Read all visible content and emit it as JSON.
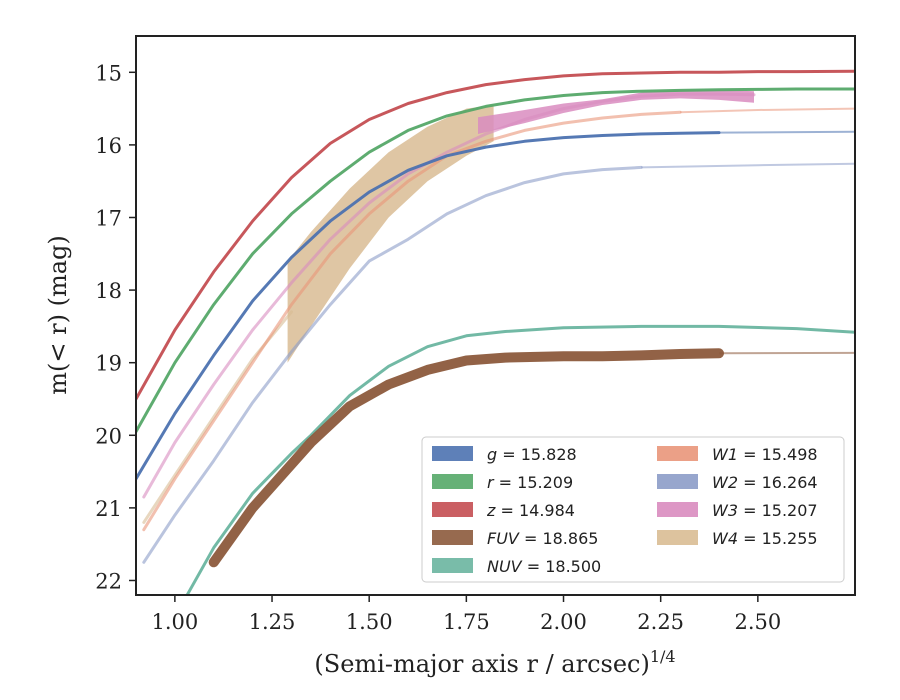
{
  "chart_data": {
    "type": "line",
    "title": "",
    "xlabel": "(Semi-major axis r / arcsec)",
    "xlabel_sup": "1/4",
    "ylabel": "m(< r) (mag)",
    "xlim": [
      0.9,
      2.75
    ],
    "ylim": [
      22.2,
      14.5
    ],
    "y_inverted": true,
    "xticks": [
      1.0,
      1.25,
      1.5,
      1.75,
      2.0,
      2.25,
      2.5
    ],
    "xtick_labels": [
      "1.00",
      "1.25",
      "1.50",
      "1.75",
      "2.00",
      "2.25",
      "2.50"
    ],
    "yticks": [
      15,
      16,
      17,
      18,
      19,
      20,
      21,
      22
    ],
    "ytick_labels": [
      "15",
      "16",
      "17",
      "18",
      "19",
      "20",
      "21",
      "22"
    ],
    "grid": false,
    "legend_position": "lower-right",
    "legend_columns": 2,
    "series": [
      {
        "id": "g",
        "name": "g",
        "value": "15.828",
        "color": "#4c72b0",
        "width": 0.05,
        "x": [
          0.9,
          1.0,
          1.1,
          1.2,
          1.3,
          1.4,
          1.5,
          1.6,
          1.7,
          1.8,
          1.9,
          2.0,
          2.1,
          2.2,
          2.3,
          2.4
        ],
        "y": [
          20.6,
          19.7,
          18.9,
          18.15,
          17.55,
          17.05,
          16.65,
          16.35,
          16.15,
          16.03,
          15.95,
          15.9,
          15.87,
          15.85,
          15.84,
          15.83
        ],
        "faded": {
          "x": [
            2.4,
            2.75
          ],
          "y": [
            15.83,
            15.82
          ]
        }
      },
      {
        "id": "r",
        "name": "r",
        "value": "15.209",
        "color": "#55a868",
        "width": 0.05,
        "x": [
          0.9,
          1.0,
          1.1,
          1.2,
          1.3,
          1.4,
          1.5,
          1.6,
          1.7,
          1.8,
          1.9,
          2.0,
          2.1,
          2.2,
          2.3,
          2.4,
          2.5,
          2.6,
          2.75
        ],
        "y": [
          19.95,
          19.0,
          18.2,
          17.5,
          16.95,
          16.5,
          16.1,
          15.8,
          15.6,
          15.47,
          15.38,
          15.32,
          15.28,
          15.26,
          15.25,
          15.24,
          15.235,
          15.23,
          15.23
        ]
      },
      {
        "id": "z",
        "name": "z",
        "value": "14.984",
        "color": "#c44e52",
        "width": 0.05,
        "x": [
          0.9,
          1.0,
          1.1,
          1.2,
          1.3,
          1.4,
          1.5,
          1.6,
          1.7,
          1.8,
          1.9,
          2.0,
          2.1,
          2.2,
          2.3,
          2.4,
          2.5,
          2.6,
          2.75
        ],
        "y": [
          19.5,
          18.55,
          17.75,
          17.05,
          16.45,
          15.98,
          15.65,
          15.43,
          15.28,
          15.17,
          15.1,
          15.05,
          15.02,
          15.01,
          15.0,
          15.0,
          14.99,
          14.99,
          14.985
        ]
      },
      {
        "id": "FUV",
        "name": "FUV",
        "value": "18.865",
        "color": "#8c5a3c",
        "width": 0.16,
        "x": [
          1.1,
          1.2,
          1.3,
          1.35,
          1.45,
          1.55,
          1.65,
          1.75,
          1.85,
          2.0,
          2.1,
          2.2,
          2.3,
          2.4
        ],
        "y": [
          21.75,
          21.0,
          20.4,
          20.1,
          19.6,
          19.3,
          19.1,
          18.97,
          18.93,
          18.91,
          18.91,
          18.9,
          18.88,
          18.87
        ],
        "faded": {
          "x": [
            2.4,
            2.75
          ],
          "y": [
            18.87,
            18.865
          ]
        }
      },
      {
        "id": "NUV",
        "name": "NUV",
        "value": "18.500",
        "color": "#6ab5a0",
        "width": 0.05,
        "x": [
          1.0,
          1.1,
          1.2,
          1.3,
          1.35,
          1.45,
          1.55,
          1.65,
          1.75,
          1.85,
          2.0,
          2.2,
          2.4,
          2.6,
          2.75
        ],
        "y": [
          22.5,
          21.55,
          20.8,
          20.25,
          20.0,
          19.45,
          19.05,
          18.78,
          18.63,
          18.57,
          18.52,
          18.5,
          18.5,
          18.53,
          18.58
        ]
      },
      {
        "id": "W1",
        "name": "W1",
        "value": "15.498",
        "color": "#e9967a",
        "width": 0.05,
        "x": [
          0.92,
          1.0,
          1.1,
          1.2,
          1.3,
          1.4,
          1.5,
          1.6,
          1.7,
          1.8,
          1.9,
          2.0,
          2.1,
          2.2,
          2.3
        ],
        "y": [
          21.3,
          20.6,
          19.8,
          19.0,
          18.2,
          17.5,
          16.95,
          16.5,
          16.15,
          15.95,
          15.8,
          15.7,
          15.63,
          15.58,
          15.55
        ],
        "faded": {
          "x": [
            2.3,
            2.5,
            2.75
          ],
          "y": [
            15.55,
            15.52,
            15.5
          ]
        }
      },
      {
        "id": "W2",
        "name": "W2",
        "value": "16.264",
        "color": "#8c9cc8",
        "width": 0.05,
        "x": [
          0.92,
          1.0,
          1.1,
          1.2,
          1.3,
          1.4,
          1.5,
          1.6,
          1.7,
          1.8,
          1.9,
          2.0,
          2.1,
          2.2
        ],
        "y": [
          21.75,
          21.1,
          20.35,
          19.55,
          18.85,
          18.2,
          17.6,
          17.3,
          16.95,
          16.7,
          16.52,
          16.4,
          16.34,
          16.31
        ],
        "faded": {
          "x": [
            2.2,
            2.5,
            2.75
          ],
          "y": [
            16.31,
            16.28,
            16.26
          ]
        }
      },
      {
        "id": "W3",
        "name": "W3",
        "value": "15.207",
        "color": "#d98cbf",
        "width": 0.05,
        "x": [
          0.92,
          1.0,
          1.1,
          1.2,
          1.3,
          1.4,
          1.5,
          1.6,
          1.7,
          1.8,
          1.9,
          2.0,
          2.1,
          2.2,
          2.3,
          2.4,
          2.49
        ],
        "y": [
          20.85,
          20.1,
          19.3,
          18.55,
          17.9,
          17.3,
          16.8,
          16.4,
          16.1,
          15.85,
          15.65,
          15.5,
          15.4,
          15.33,
          15.3,
          15.3,
          15.31
        ],
        "band": {
          "x": [
            1.78,
            1.9,
            2.0,
            2.1,
            2.2,
            2.3,
            2.4,
            2.49
          ],
          "low": [
            15.62,
            15.52,
            15.43,
            15.37,
            15.28,
            15.24,
            15.24,
            15.26
          ],
          "high": [
            15.85,
            15.7,
            15.56,
            15.45,
            15.38,
            15.36,
            15.38,
            15.42
          ]
        }
      },
      {
        "id": "W4",
        "name": "W4",
        "value": "15.255",
        "color": "#d9bc94",
        "width": 0.05,
        "band": {
          "x": [
            1.29,
            1.35,
            1.45,
            1.55,
            1.65,
            1.75,
            1.82
          ],
          "low": [
            17.6,
            17.2,
            16.6,
            16.1,
            15.75,
            15.5,
            15.45
          ],
          "high": [
            19.0,
            18.5,
            17.7,
            17.0,
            16.5,
            16.15,
            15.95
          ]
        },
        "x": [
          0.92,
          1.0,
          1.1,
          1.2,
          1.3
        ],
        "y": [
          21.2,
          20.55,
          19.75,
          18.95,
          18.3
        ]
      }
    ]
  }
}
